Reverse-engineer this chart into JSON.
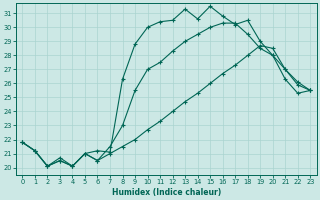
{
  "xlabel": "Humidex (Indice chaleur)",
  "background_color": "#cce8e5",
  "line_color": "#006655",
  "grid_color": "#aad4d0",
  "xlim": [
    -0.5,
    23.5
  ],
  "ylim": [
    19.5,
    31.7
  ],
  "xticks": [
    0,
    1,
    2,
    3,
    4,
    5,
    6,
    7,
    8,
    9,
    10,
    11,
    12,
    13,
    14,
    15,
    16,
    17,
    18,
    19,
    20,
    21,
    22,
    23
  ],
  "yticks": [
    20,
    21,
    22,
    23,
    24,
    25,
    26,
    27,
    28,
    29,
    30,
    31
  ],
  "line1_x": [
    0,
    1,
    2,
    3,
    4,
    5,
    6,
    7,
    8,
    9,
    10,
    11,
    12,
    13,
    14,
    15,
    16,
    17,
    18,
    19,
    20,
    21,
    22,
    23
  ],
  "line1_y": [
    21.8,
    21.2,
    20.1,
    20.7,
    20.1,
    21.0,
    21.2,
    21.1,
    26.3,
    28.8,
    30.0,
    30.4,
    30.5,
    31.3,
    30.6,
    31.5,
    30.8,
    30.2,
    30.5,
    29.0,
    28.0,
    26.3,
    25.3,
    25.5
  ],
  "line2_x": [
    0,
    1,
    2,
    3,
    4,
    5,
    6,
    7,
    8,
    9,
    10,
    11,
    12,
    13,
    14,
    15,
    16,
    17,
    18,
    19,
    20,
    21,
    22,
    23
  ],
  "line2_y": [
    21.8,
    21.2,
    20.1,
    20.5,
    20.1,
    21.0,
    20.5,
    21.5,
    23.0,
    25.5,
    27.0,
    27.5,
    28.3,
    29.0,
    29.5,
    30.0,
    30.3,
    30.3,
    29.5,
    28.5,
    28.0,
    27.0,
    26.1,
    25.5
  ],
  "line3_x": [
    0,
    1,
    2,
    3,
    4,
    5,
    6,
    7,
    8,
    9,
    10,
    11,
    12,
    13,
    14,
    15,
    16,
    17,
    18,
    19,
    20,
    21,
    22,
    23
  ],
  "line3_y": [
    21.8,
    21.2,
    20.1,
    20.5,
    20.1,
    21.0,
    20.5,
    21.0,
    21.5,
    22.0,
    22.7,
    23.3,
    24.0,
    24.7,
    25.3,
    26.0,
    26.7,
    27.3,
    28.0,
    28.7,
    28.5,
    27.0,
    25.9,
    25.5
  ]
}
